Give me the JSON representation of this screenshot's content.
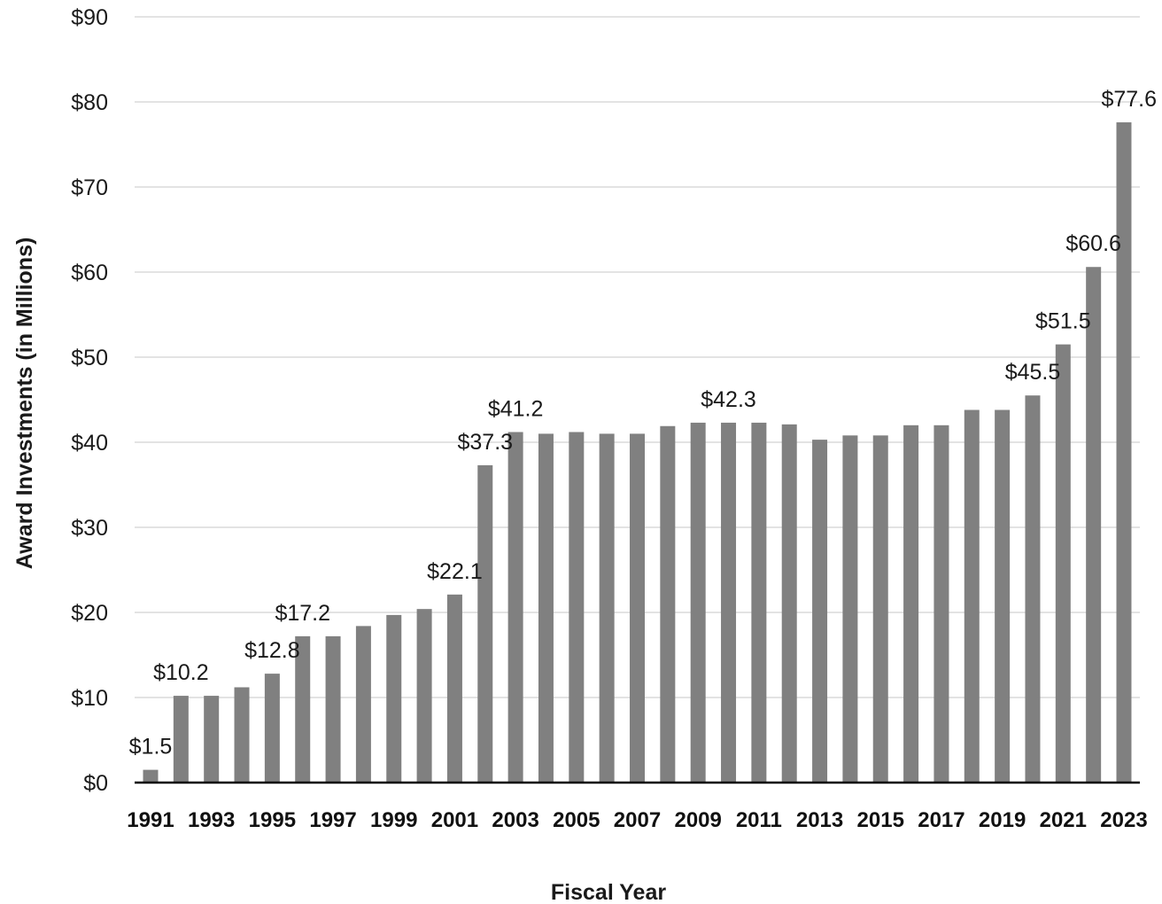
{
  "chart_data": {
    "type": "bar",
    "xlabel": "Fiscal Year",
    "ylabel": "Award Investments (in Millions)",
    "ylim": [
      0,
      90
    ],
    "ytick_step": 10,
    "ytick_prefix": "$",
    "grid": true,
    "legend": "none",
    "bar_color": "#808080",
    "categories": [
      "1991",
      "1992",
      "1993",
      "1994",
      "1995",
      "1996",
      "1997",
      "1998",
      "1999",
      "2000",
      "2001",
      "2002",
      "2003",
      "2004",
      "2005",
      "2006",
      "2007",
      "2008",
      "2009",
      "2010",
      "2011",
      "2012",
      "2013",
      "2014",
      "2015",
      "2016",
      "2017",
      "2018",
      "2019",
      "2020",
      "2021",
      "2022",
      "2023"
    ],
    "x_tick_labels": [
      "1991",
      "1993",
      "1995",
      "1997",
      "1999",
      "2001",
      "2003",
      "2005",
      "2007",
      "2009",
      "2011",
      "2013",
      "2015",
      "2017",
      "2019",
      "2021",
      "2023"
    ],
    "values": [
      1.5,
      10.2,
      10.2,
      11.2,
      12.8,
      17.2,
      17.2,
      18.4,
      19.7,
      20.4,
      22.1,
      37.3,
      41.2,
      41.0,
      41.2,
      41.0,
      41.0,
      41.9,
      42.3,
      42.3,
      42.3,
      42.1,
      40.3,
      40.8,
      40.8,
      42.0,
      42.0,
      43.8,
      43.8,
      45.5,
      51.5,
      60.6,
      77.6
    ],
    "data_labels": [
      {
        "category": "1991",
        "text": "$1.5"
      },
      {
        "category": "1992",
        "text": "$10.2"
      },
      {
        "category": "1995",
        "text": "$12.8"
      },
      {
        "category": "1996",
        "text": "$17.2"
      },
      {
        "category": "2001",
        "text": "$22.1"
      },
      {
        "category": "2002",
        "text": "$37.3"
      },
      {
        "category": "2003",
        "text": "$41.2"
      },
      {
        "category": "2010",
        "text": "$42.3"
      },
      {
        "category": "2020",
        "text": "$45.5"
      },
      {
        "category": "2021",
        "text": "$51.5"
      },
      {
        "category": "2022",
        "text": "$60.6"
      },
      {
        "category": "2023",
        "text": "$77.6"
      }
    ]
  }
}
